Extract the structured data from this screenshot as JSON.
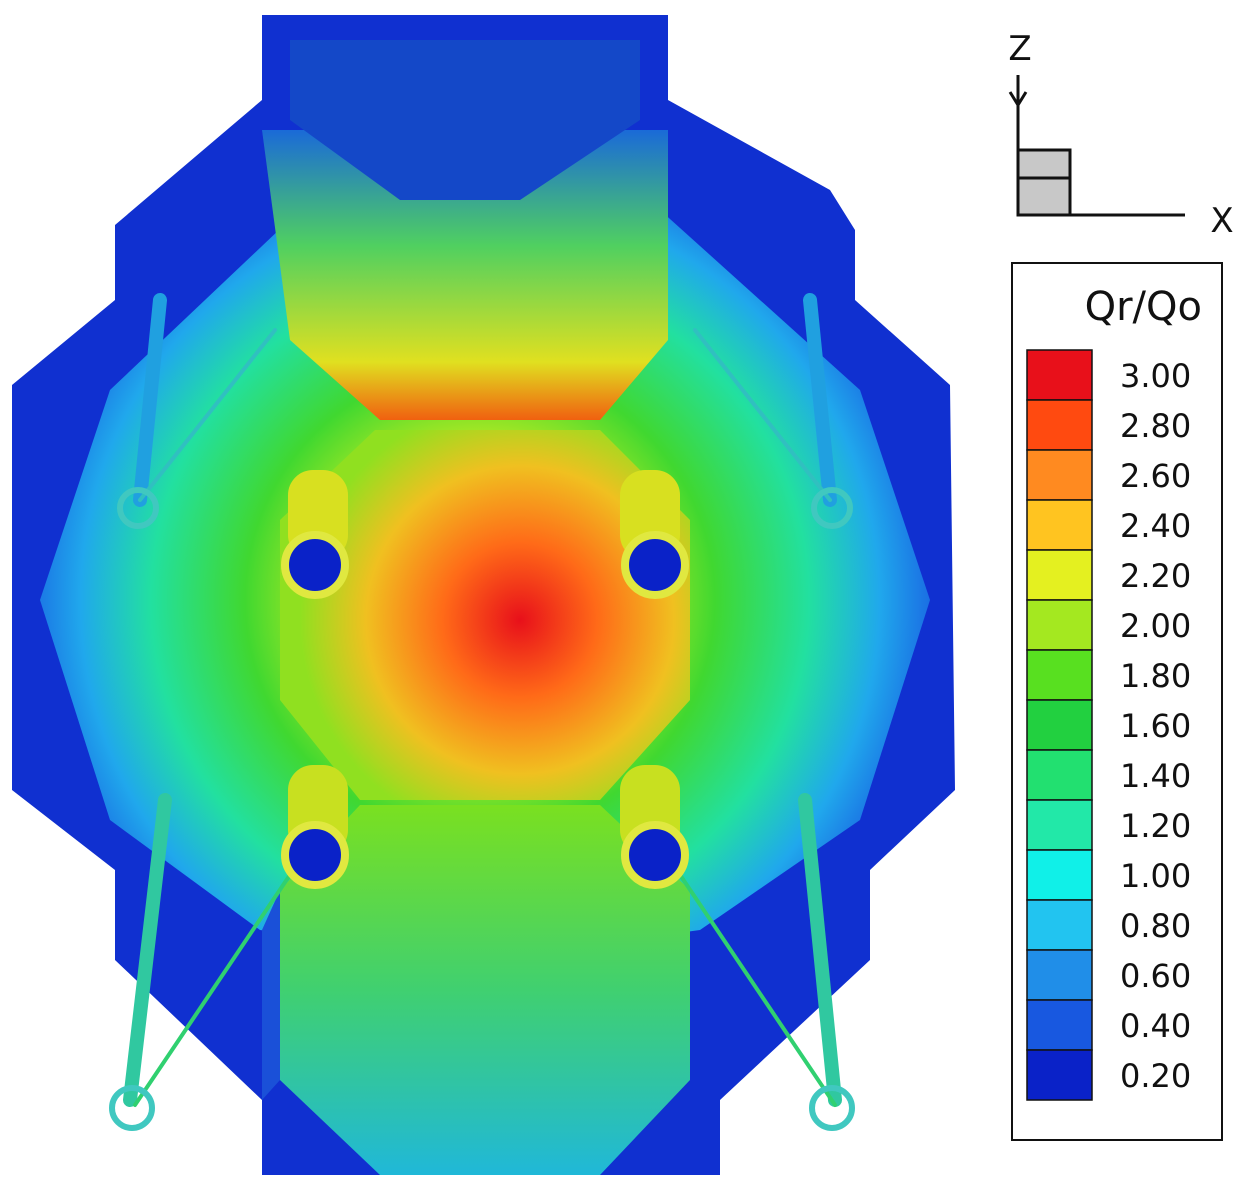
{
  "axes": {
    "z": "Z",
    "x": "X"
  },
  "legend": {
    "title": "Qr/Qo",
    "levels": [
      {
        "value": 3.0,
        "label": "3.00",
        "color": "#e8101a"
      },
      {
        "value": 2.8,
        "label": "2.80",
        "color": "#ff4a10"
      },
      {
        "value": 2.6,
        "label": "2.60",
        "color": "#ff8a20"
      },
      {
        "value": 2.4,
        "label": "2.40",
        "color": "#ffc420"
      },
      {
        "value": 2.2,
        "label": "2.20",
        "color": "#e4f020"
      },
      {
        "value": 2.0,
        "label": "2.00",
        "color": "#a4e820"
      },
      {
        "value": 1.8,
        "label": "1.80",
        "color": "#58e020"
      },
      {
        "value": 1.6,
        "label": "1.60",
        "color": "#22d040"
      },
      {
        "value": 1.4,
        "label": "1.40",
        "color": "#22e070"
      },
      {
        "value": 1.2,
        "label": "1.20",
        "color": "#22e8a8"
      },
      {
        "value": 1.0,
        "label": "1.00",
        "color": "#10f0e8"
      },
      {
        "value": 0.8,
        "label": "0.80",
        "color": "#22c4f0"
      },
      {
        "value": 0.6,
        "label": "0.60",
        "color": "#208ee8"
      },
      {
        "value": 0.4,
        "label": "0.40",
        "color": "#1858e0"
      },
      {
        "value": 0.2,
        "label": "0.20",
        "color": "#0a22c8"
      }
    ]
  }
}
